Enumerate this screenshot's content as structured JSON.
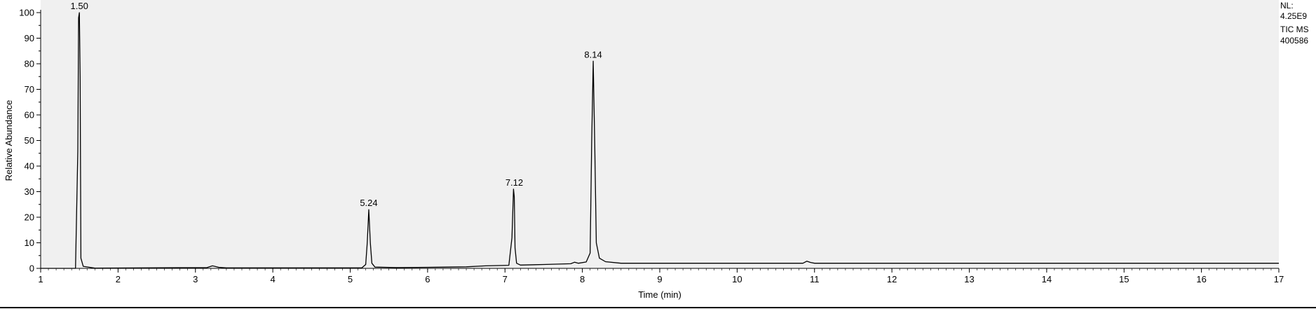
{
  "chart_data": {
    "type": "line",
    "xlabel": "Time (min)",
    "ylabel": "Relative Abundance",
    "xlim": [
      1,
      17
    ],
    "ylim": [
      0,
      100
    ],
    "xticks": [
      1,
      2,
      3,
      4,
      5,
      6,
      7,
      8,
      9,
      10,
      11,
      12,
      13,
      14,
      15,
      16,
      17
    ],
    "yticks": [
      0,
      10,
      20,
      30,
      40,
      50,
      60,
      70,
      80,
      90,
      100
    ],
    "grid": false,
    "legend": "none",
    "colors": {
      "trace": "#000000",
      "plot_background": "#f0f0f0",
      "axis": "#000000"
    },
    "series": [
      {
        "x": [
          1.0,
          1.45,
          1.48,
          1.49,
          1.5,
          1.51,
          1.52,
          1.55,
          1.7,
          3.15,
          3.22,
          3.25,
          3.3,
          3.4,
          5.15,
          5.2,
          5.22,
          5.24,
          5.26,
          5.28,
          5.32,
          5.6,
          6.0,
          6.5,
          6.75,
          7.05,
          7.09,
          7.11,
          7.12,
          7.13,
          7.15,
          7.2,
          7.5,
          7.85,
          7.9,
          7.95,
          8.05,
          8.1,
          8.12,
          8.14,
          8.16,
          8.18,
          8.22,
          8.3,
          8.5,
          10.85,
          10.9,
          10.95,
          11.0,
          17.0
        ],
        "y": [
          0,
          0,
          46,
          98,
          100,
          75,
          4,
          0.8,
          0.1,
          0.3,
          1.0,
          0.8,
          0.4,
          0.2,
          0.2,
          1.5,
          10,
          23,
          10,
          2,
          0.5,
          0.3,
          0.4,
          0.6,
          1.0,
          1.2,
          12,
          31,
          28,
          8,
          2,
          1.3,
          1.5,
          1.8,
          2.4,
          2.0,
          2.5,
          6,
          49,
          81,
          48,
          10,
          4,
          2.6,
          2.0,
          2.0,
          2.8,
          2.3,
          2.0,
          2.0
        ]
      }
    ],
    "annotations": [
      {
        "label": "1.50",
        "x": 1.5,
        "y": 100
      },
      {
        "label": "5.24",
        "x": 5.24,
        "y": 23
      },
      {
        "label": "7.12",
        "x": 7.12,
        "y": 31
      },
      {
        "label": "8.14",
        "x": 8.14,
        "y": 81
      }
    ]
  },
  "info_box": {
    "nl_label": "NL:",
    "nl_value": "4.25E9",
    "scan_type": "TIC  MS",
    "sample_id": "400586"
  }
}
